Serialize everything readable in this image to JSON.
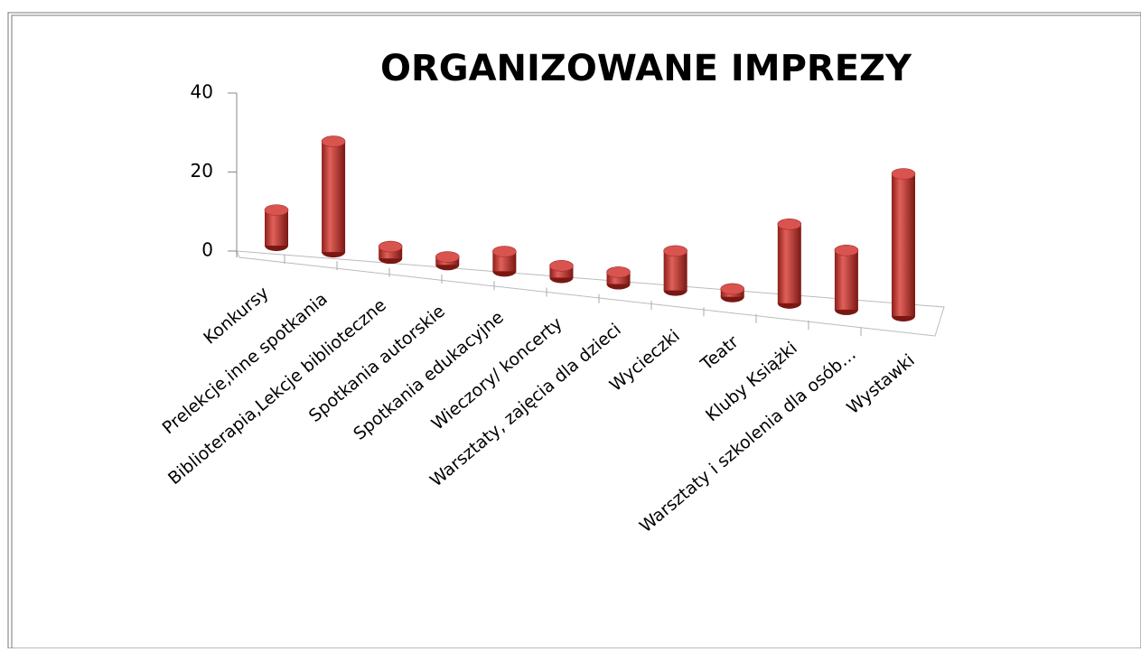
{
  "chart_data": {
    "type": "bar3d",
    "title": "ORGANIZOWANE IMPREZY",
    "categories": [
      "Konkursy",
      "Prelekcje,inne spotkania",
      "Biblioterapia,Lekcje biblioteczne",
      "Spotkania autorskie",
      "Spotkania edukacyjne",
      "Wieczory/ koncerty",
      "Warsztaty, zajęcia dla dzieci",
      "Wycieczki",
      "Teatr",
      "Kluby Książki",
      "Warsztaty i szkolenia dla osób…",
      "Wystawki"
    ],
    "values": [
      9,
      28,
      3,
      2,
      5,
      3,
      3,
      10,
      2,
      20,
      15,
      36
    ],
    "color": "#c0392b",
    "ylim": [
      0,
      40
    ],
    "yticks": [
      0,
      20,
      40
    ]
  }
}
